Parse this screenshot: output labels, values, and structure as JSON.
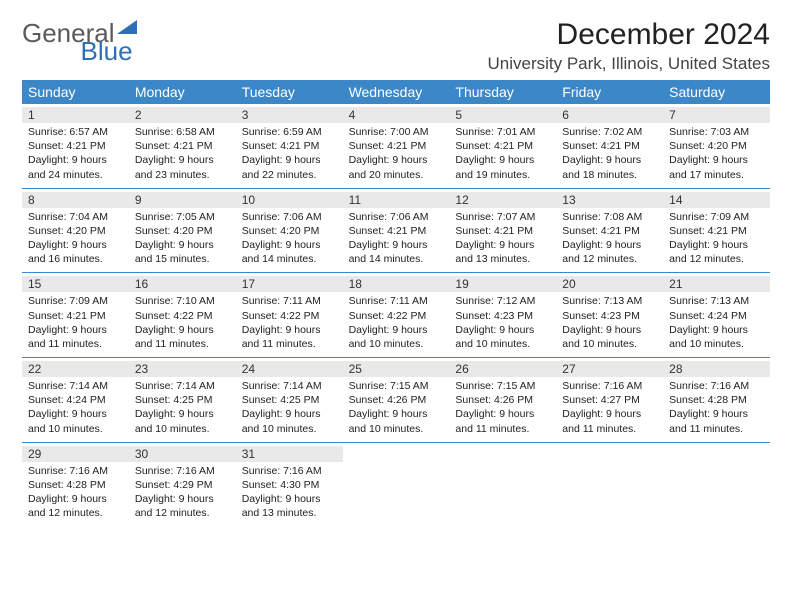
{
  "brand": {
    "part1": "General",
    "part2": "Blue"
  },
  "title": "December 2024",
  "subtitle": "University Park, Illinois, United States",
  "colors": {
    "header_bg": "#3b87c8",
    "header_text": "#ffffff",
    "daynum_bg": "#e9e9e9",
    "rule": "#3b87c8",
    "brand_gray": "#5a5a5a",
    "brand_blue": "#2f6fb3"
  },
  "dayNames": [
    "Sunday",
    "Monday",
    "Tuesday",
    "Wednesday",
    "Thursday",
    "Friday",
    "Saturday"
  ],
  "days": [
    {
      "n": 1,
      "sunrise": "6:57 AM",
      "sunset": "4:21 PM",
      "dl": "9 hours and 24 minutes."
    },
    {
      "n": 2,
      "sunrise": "6:58 AM",
      "sunset": "4:21 PM",
      "dl": "9 hours and 23 minutes."
    },
    {
      "n": 3,
      "sunrise": "6:59 AM",
      "sunset": "4:21 PM",
      "dl": "9 hours and 22 minutes."
    },
    {
      "n": 4,
      "sunrise": "7:00 AM",
      "sunset": "4:21 PM",
      "dl": "9 hours and 20 minutes."
    },
    {
      "n": 5,
      "sunrise": "7:01 AM",
      "sunset": "4:21 PM",
      "dl": "9 hours and 19 minutes."
    },
    {
      "n": 6,
      "sunrise": "7:02 AM",
      "sunset": "4:21 PM",
      "dl": "9 hours and 18 minutes."
    },
    {
      "n": 7,
      "sunrise": "7:03 AM",
      "sunset": "4:20 PM",
      "dl": "9 hours and 17 minutes."
    },
    {
      "n": 8,
      "sunrise": "7:04 AM",
      "sunset": "4:20 PM",
      "dl": "9 hours and 16 minutes."
    },
    {
      "n": 9,
      "sunrise": "7:05 AM",
      "sunset": "4:20 PM",
      "dl": "9 hours and 15 minutes."
    },
    {
      "n": 10,
      "sunrise": "7:06 AM",
      "sunset": "4:20 PM",
      "dl": "9 hours and 14 minutes."
    },
    {
      "n": 11,
      "sunrise": "7:06 AM",
      "sunset": "4:21 PM",
      "dl": "9 hours and 14 minutes."
    },
    {
      "n": 12,
      "sunrise": "7:07 AM",
      "sunset": "4:21 PM",
      "dl": "9 hours and 13 minutes."
    },
    {
      "n": 13,
      "sunrise": "7:08 AM",
      "sunset": "4:21 PM",
      "dl": "9 hours and 12 minutes."
    },
    {
      "n": 14,
      "sunrise": "7:09 AM",
      "sunset": "4:21 PM",
      "dl": "9 hours and 12 minutes."
    },
    {
      "n": 15,
      "sunrise": "7:09 AM",
      "sunset": "4:21 PM",
      "dl": "9 hours and 11 minutes."
    },
    {
      "n": 16,
      "sunrise": "7:10 AM",
      "sunset": "4:22 PM",
      "dl": "9 hours and 11 minutes."
    },
    {
      "n": 17,
      "sunrise": "7:11 AM",
      "sunset": "4:22 PM",
      "dl": "9 hours and 11 minutes."
    },
    {
      "n": 18,
      "sunrise": "7:11 AM",
      "sunset": "4:22 PM",
      "dl": "9 hours and 10 minutes."
    },
    {
      "n": 19,
      "sunrise": "7:12 AM",
      "sunset": "4:23 PM",
      "dl": "9 hours and 10 minutes."
    },
    {
      "n": 20,
      "sunrise": "7:13 AM",
      "sunset": "4:23 PM",
      "dl": "9 hours and 10 minutes."
    },
    {
      "n": 21,
      "sunrise": "7:13 AM",
      "sunset": "4:24 PM",
      "dl": "9 hours and 10 minutes."
    },
    {
      "n": 22,
      "sunrise": "7:14 AM",
      "sunset": "4:24 PM",
      "dl": "9 hours and 10 minutes."
    },
    {
      "n": 23,
      "sunrise": "7:14 AM",
      "sunset": "4:25 PM",
      "dl": "9 hours and 10 minutes."
    },
    {
      "n": 24,
      "sunrise": "7:14 AM",
      "sunset": "4:25 PM",
      "dl": "9 hours and 10 minutes."
    },
    {
      "n": 25,
      "sunrise": "7:15 AM",
      "sunset": "4:26 PM",
      "dl": "9 hours and 10 minutes."
    },
    {
      "n": 26,
      "sunrise": "7:15 AM",
      "sunset": "4:26 PM",
      "dl": "9 hours and 11 minutes."
    },
    {
      "n": 27,
      "sunrise": "7:16 AM",
      "sunset": "4:27 PM",
      "dl": "9 hours and 11 minutes."
    },
    {
      "n": 28,
      "sunrise": "7:16 AM",
      "sunset": "4:28 PM",
      "dl": "9 hours and 11 minutes."
    },
    {
      "n": 29,
      "sunrise": "7:16 AM",
      "sunset": "4:28 PM",
      "dl": "9 hours and 12 minutes."
    },
    {
      "n": 30,
      "sunrise": "7:16 AM",
      "sunset": "4:29 PM",
      "dl": "9 hours and 12 minutes."
    },
    {
      "n": 31,
      "sunrise": "7:16 AM",
      "sunset": "4:30 PM",
      "dl": "9 hours and 13 minutes."
    }
  ],
  "labels": {
    "sunrise": "Sunrise:",
    "sunset": "Sunset:",
    "daylight": "Daylight:"
  },
  "firstDayOffset": 0,
  "typography": {
    "title_fontsize": 30,
    "subtitle_fontsize": 17,
    "dayname_fontsize": 14,
    "cell_fontsize": 10.5
  }
}
